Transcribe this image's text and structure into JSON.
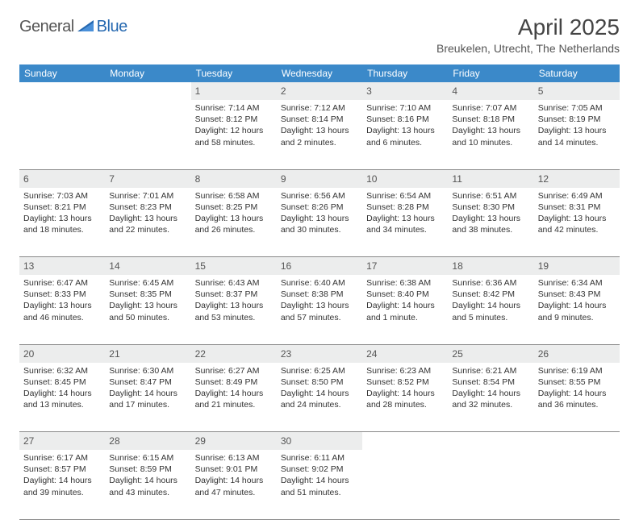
{
  "logo": {
    "word1": "General",
    "word2": "Blue"
  },
  "title": "April 2025",
  "location": "Breukelen, Utrecht, The Netherlands",
  "colors": {
    "header_bg": "#3b89c9",
    "daynum_bg": "#eceded",
    "border": "#7a7a7a",
    "text": "#333333",
    "muted": "#555555"
  },
  "weekdays": [
    "Sunday",
    "Monday",
    "Tuesday",
    "Wednesday",
    "Thursday",
    "Friday",
    "Saturday"
  ],
  "weeks": [
    [
      {
        "n": "",
        "lines": []
      },
      {
        "n": "",
        "lines": []
      },
      {
        "n": "1",
        "lines": [
          "Sunrise: 7:14 AM",
          "Sunset: 8:12 PM",
          "Daylight: 12 hours",
          "and 58 minutes."
        ]
      },
      {
        "n": "2",
        "lines": [
          "Sunrise: 7:12 AM",
          "Sunset: 8:14 PM",
          "Daylight: 13 hours",
          "and 2 minutes."
        ]
      },
      {
        "n": "3",
        "lines": [
          "Sunrise: 7:10 AM",
          "Sunset: 8:16 PM",
          "Daylight: 13 hours",
          "and 6 minutes."
        ]
      },
      {
        "n": "4",
        "lines": [
          "Sunrise: 7:07 AM",
          "Sunset: 8:18 PM",
          "Daylight: 13 hours",
          "and 10 minutes."
        ]
      },
      {
        "n": "5",
        "lines": [
          "Sunrise: 7:05 AM",
          "Sunset: 8:19 PM",
          "Daylight: 13 hours",
          "and 14 minutes."
        ]
      }
    ],
    [
      {
        "n": "6",
        "lines": [
          "Sunrise: 7:03 AM",
          "Sunset: 8:21 PM",
          "Daylight: 13 hours",
          "and 18 minutes."
        ]
      },
      {
        "n": "7",
        "lines": [
          "Sunrise: 7:01 AM",
          "Sunset: 8:23 PM",
          "Daylight: 13 hours",
          "and 22 minutes."
        ]
      },
      {
        "n": "8",
        "lines": [
          "Sunrise: 6:58 AM",
          "Sunset: 8:25 PM",
          "Daylight: 13 hours",
          "and 26 minutes."
        ]
      },
      {
        "n": "9",
        "lines": [
          "Sunrise: 6:56 AM",
          "Sunset: 8:26 PM",
          "Daylight: 13 hours",
          "and 30 minutes."
        ]
      },
      {
        "n": "10",
        "lines": [
          "Sunrise: 6:54 AM",
          "Sunset: 8:28 PM",
          "Daylight: 13 hours",
          "and 34 minutes."
        ]
      },
      {
        "n": "11",
        "lines": [
          "Sunrise: 6:51 AM",
          "Sunset: 8:30 PM",
          "Daylight: 13 hours",
          "and 38 minutes."
        ]
      },
      {
        "n": "12",
        "lines": [
          "Sunrise: 6:49 AM",
          "Sunset: 8:31 PM",
          "Daylight: 13 hours",
          "and 42 minutes."
        ]
      }
    ],
    [
      {
        "n": "13",
        "lines": [
          "Sunrise: 6:47 AM",
          "Sunset: 8:33 PM",
          "Daylight: 13 hours",
          "and 46 minutes."
        ]
      },
      {
        "n": "14",
        "lines": [
          "Sunrise: 6:45 AM",
          "Sunset: 8:35 PM",
          "Daylight: 13 hours",
          "and 50 minutes."
        ]
      },
      {
        "n": "15",
        "lines": [
          "Sunrise: 6:43 AM",
          "Sunset: 8:37 PM",
          "Daylight: 13 hours",
          "and 53 minutes."
        ]
      },
      {
        "n": "16",
        "lines": [
          "Sunrise: 6:40 AM",
          "Sunset: 8:38 PM",
          "Daylight: 13 hours",
          "and 57 minutes."
        ]
      },
      {
        "n": "17",
        "lines": [
          "Sunrise: 6:38 AM",
          "Sunset: 8:40 PM",
          "Daylight: 14 hours",
          "and 1 minute."
        ]
      },
      {
        "n": "18",
        "lines": [
          "Sunrise: 6:36 AM",
          "Sunset: 8:42 PM",
          "Daylight: 14 hours",
          "and 5 minutes."
        ]
      },
      {
        "n": "19",
        "lines": [
          "Sunrise: 6:34 AM",
          "Sunset: 8:43 PM",
          "Daylight: 14 hours",
          "and 9 minutes."
        ]
      }
    ],
    [
      {
        "n": "20",
        "lines": [
          "Sunrise: 6:32 AM",
          "Sunset: 8:45 PM",
          "Daylight: 14 hours",
          "and 13 minutes."
        ]
      },
      {
        "n": "21",
        "lines": [
          "Sunrise: 6:30 AM",
          "Sunset: 8:47 PM",
          "Daylight: 14 hours",
          "and 17 minutes."
        ]
      },
      {
        "n": "22",
        "lines": [
          "Sunrise: 6:27 AM",
          "Sunset: 8:49 PM",
          "Daylight: 14 hours",
          "and 21 minutes."
        ]
      },
      {
        "n": "23",
        "lines": [
          "Sunrise: 6:25 AM",
          "Sunset: 8:50 PM",
          "Daylight: 14 hours",
          "and 24 minutes."
        ]
      },
      {
        "n": "24",
        "lines": [
          "Sunrise: 6:23 AM",
          "Sunset: 8:52 PM",
          "Daylight: 14 hours",
          "and 28 minutes."
        ]
      },
      {
        "n": "25",
        "lines": [
          "Sunrise: 6:21 AM",
          "Sunset: 8:54 PM",
          "Daylight: 14 hours",
          "and 32 minutes."
        ]
      },
      {
        "n": "26",
        "lines": [
          "Sunrise: 6:19 AM",
          "Sunset: 8:55 PM",
          "Daylight: 14 hours",
          "and 36 minutes."
        ]
      }
    ],
    [
      {
        "n": "27",
        "lines": [
          "Sunrise: 6:17 AM",
          "Sunset: 8:57 PM",
          "Daylight: 14 hours",
          "and 39 minutes."
        ]
      },
      {
        "n": "28",
        "lines": [
          "Sunrise: 6:15 AM",
          "Sunset: 8:59 PM",
          "Daylight: 14 hours",
          "and 43 minutes."
        ]
      },
      {
        "n": "29",
        "lines": [
          "Sunrise: 6:13 AM",
          "Sunset: 9:01 PM",
          "Daylight: 14 hours",
          "and 47 minutes."
        ]
      },
      {
        "n": "30",
        "lines": [
          "Sunrise: 6:11 AM",
          "Sunset: 9:02 PM",
          "Daylight: 14 hours",
          "and 51 minutes."
        ]
      },
      {
        "n": "",
        "lines": []
      },
      {
        "n": "",
        "lines": []
      },
      {
        "n": "",
        "lines": []
      }
    ]
  ]
}
